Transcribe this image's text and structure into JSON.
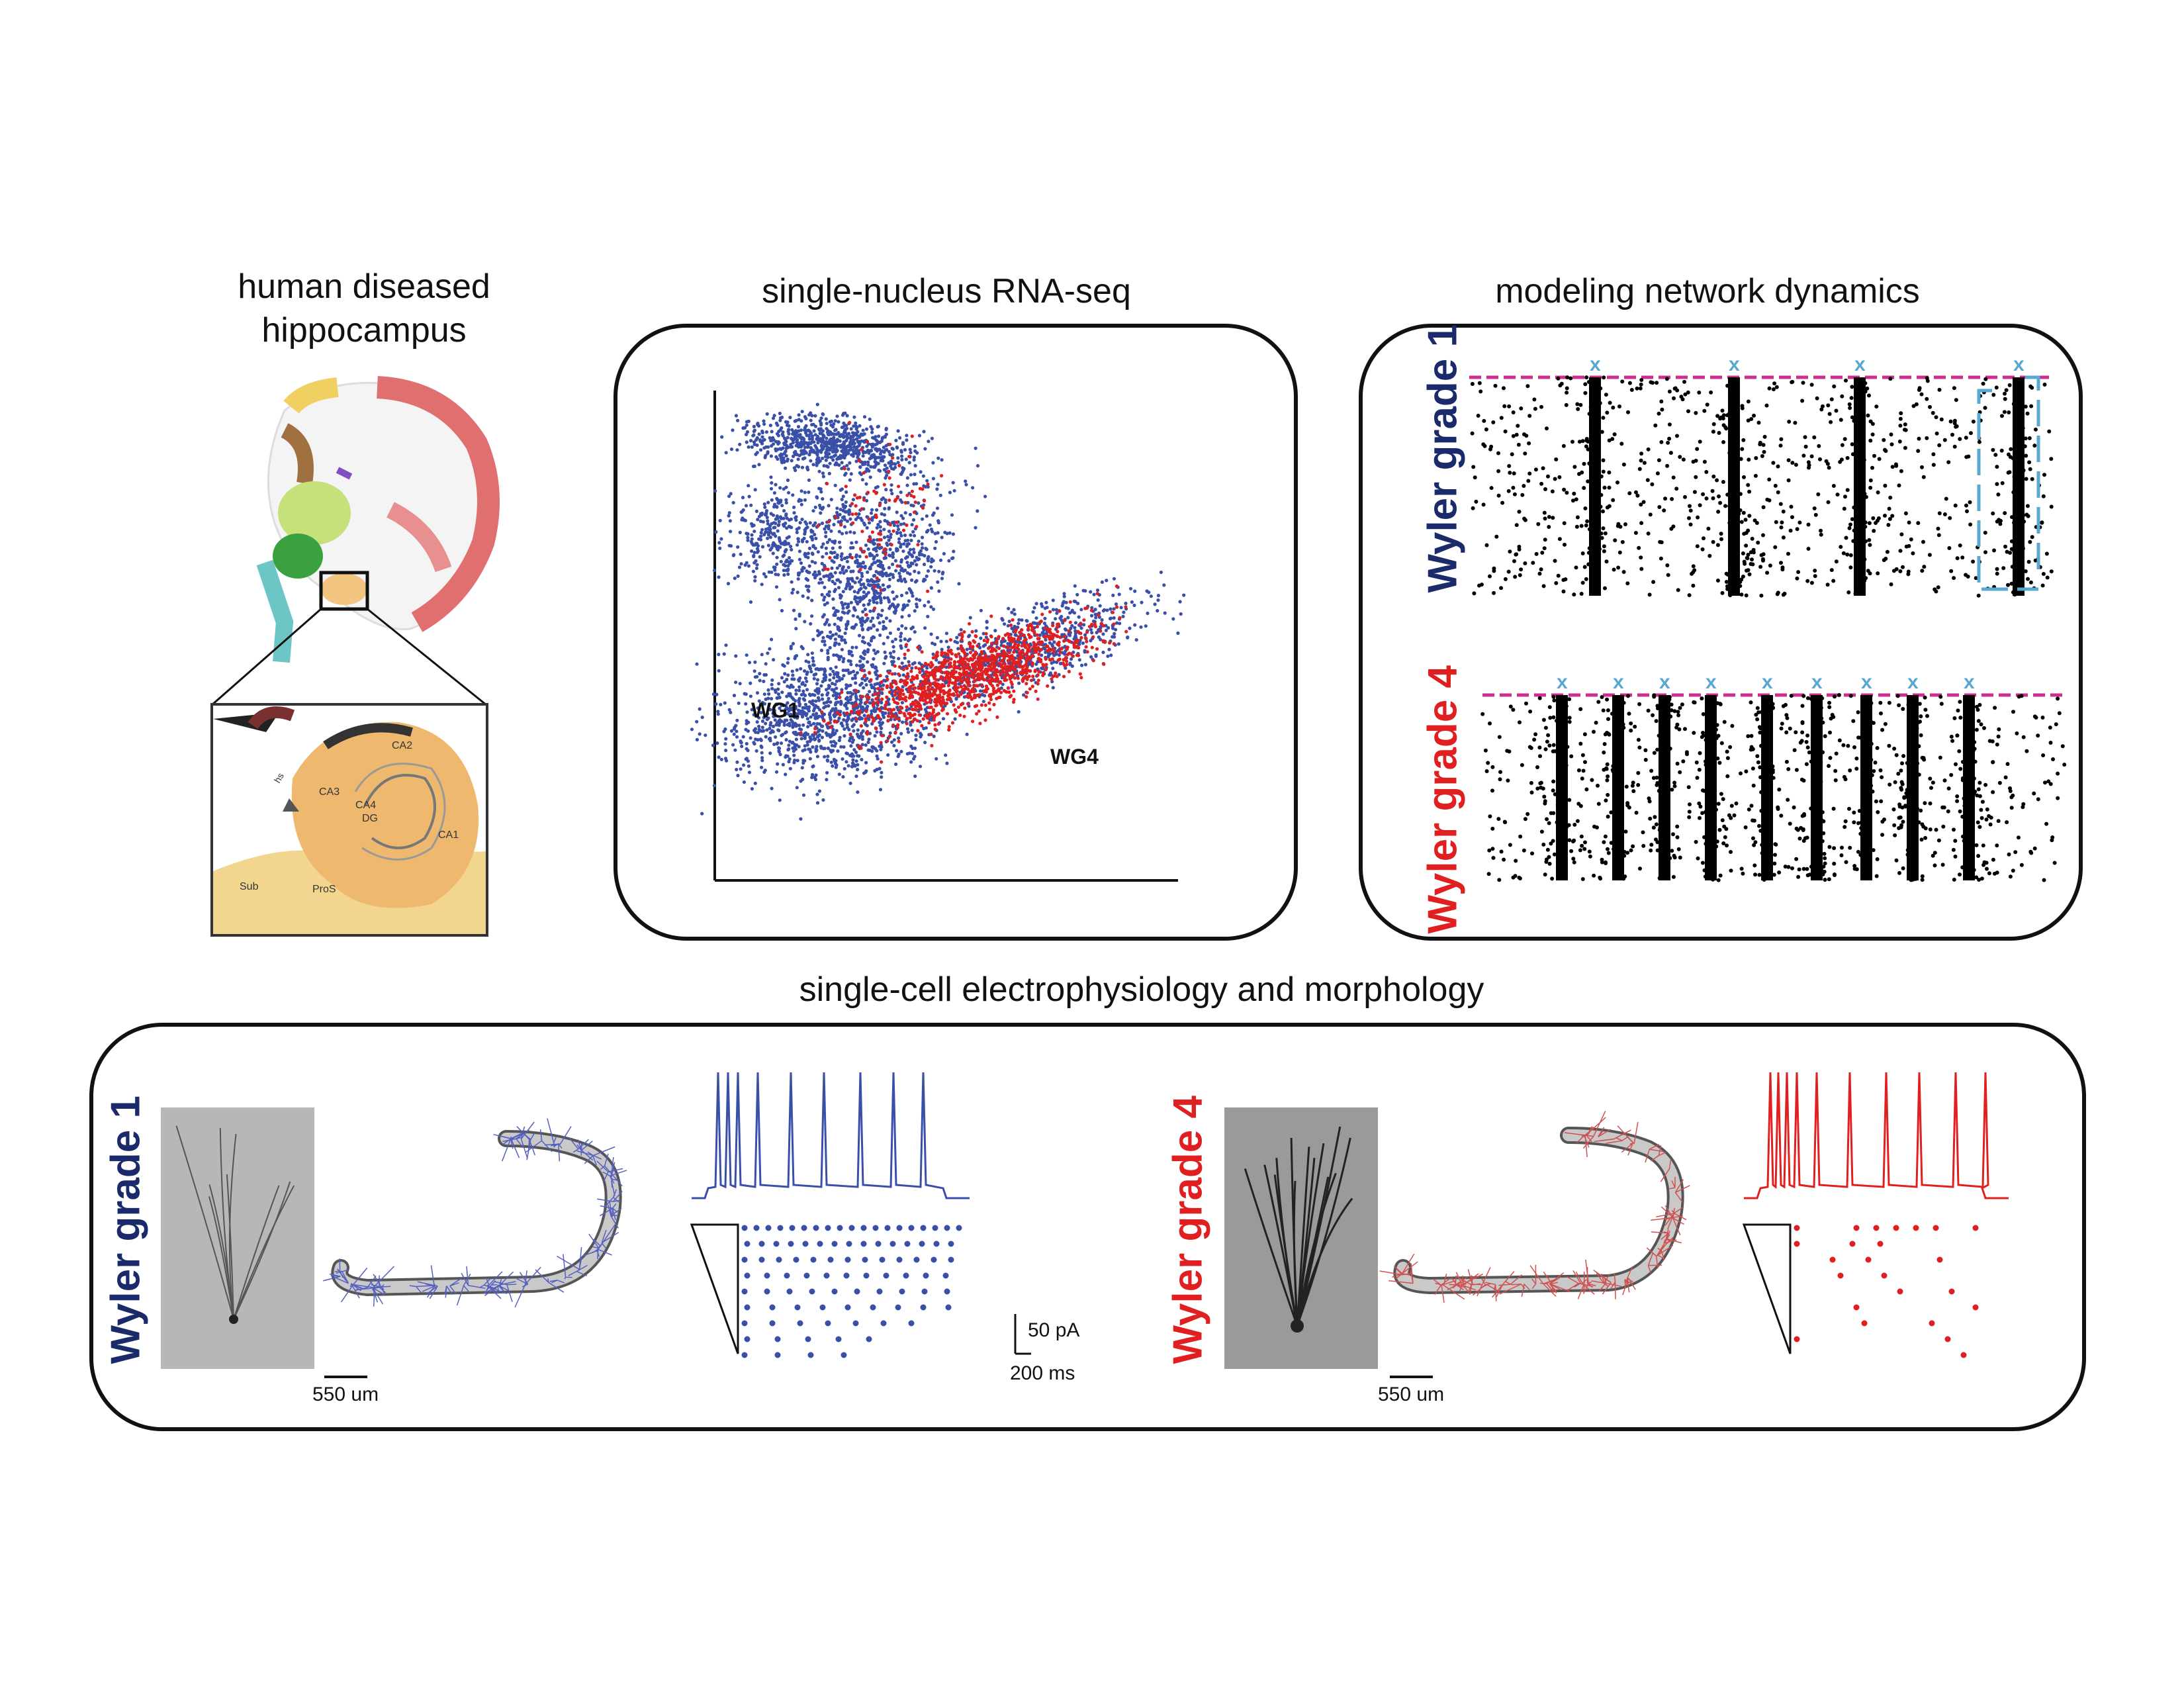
{
  "sections": {
    "hippocampus": {
      "title_line1": "human diseased",
      "title_line2": "hippocampus",
      "atlas_labels": [
        "CA2",
        "CA3",
        "CA4",
        "DG",
        "CA1",
        "Sub",
        "ProS",
        "hs"
      ]
    },
    "rnaseq": {
      "title": "single-nucleus RNA-seq",
      "label_wg1": "WG1",
      "label_wg4": "WG4"
    },
    "network": {
      "title": "modeling network dynamics",
      "grade1": "Wyler grade 1",
      "grade4": "Wyler grade 4",
      "marker": "x"
    },
    "ephys": {
      "title": "single-cell electrophysiology and morphology",
      "grade1": "Wyler grade 1",
      "grade4": "Wyler grade 4",
      "scale_um": "550 um",
      "scale_pa": "50 pA",
      "scale_ms": "200 ms"
    }
  },
  "colors": {
    "wg1": "#3a4fa8",
    "wg4": "#e02020",
    "dark_blue": "#1b2a6b",
    "magenta": "#cc2d8f",
    "cyan": "#5aa7cf",
    "black": "#000000"
  }
}
